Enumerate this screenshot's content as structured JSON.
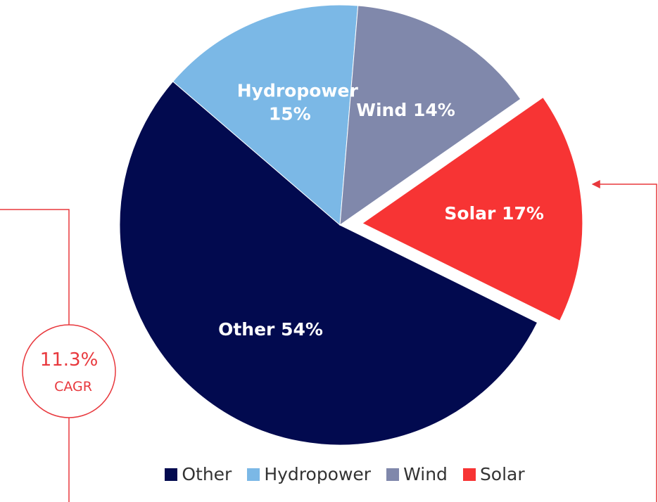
{
  "chart_data": {
    "type": "pie",
    "categories": [
      "Other",
      "Hydropower",
      "Wind",
      "Solar"
    ],
    "values": [
      54,
      15,
      14,
      17
    ],
    "value_labels": [
      "Other 54%",
      "Hydropower 15%",
      "Wind 14%",
      "Solar 17%"
    ],
    "colors": [
      "#020a4f",
      "#7bb8e6",
      "#8088ab",
      "#f73434"
    ],
    "exploded": [
      false,
      false,
      false,
      true
    ],
    "legend": "bottom",
    "annotations": [
      "11.3%",
      "CAGR"
    ]
  }
}
